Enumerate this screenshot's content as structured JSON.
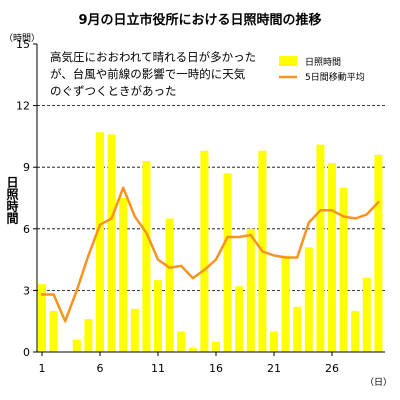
{
  "chart_data": {
    "type": "bar",
    "title": "9月の日立市役所における日照時間の推移",
    "ylabel": "日照時間",
    "y_unit": "（時間）",
    "x_unit": "（日）",
    "ylim": [
      0,
      15
    ],
    "yticks": [
      0,
      3,
      6,
      9,
      12,
      15
    ],
    "xlim": [
      1,
      30
    ],
    "xticks": [
      1,
      6,
      11,
      16,
      21,
      26
    ],
    "grid": true,
    "legend_position": "top-right",
    "annotation": [
      "高気圧におおわれて晴れる日が多かった",
      "が、台風や前線の影響で一時的に天気",
      "のぐずつくときがあった"
    ],
    "x": [
      1,
      2,
      3,
      4,
      5,
      6,
      7,
      8,
      9,
      10,
      11,
      12,
      13,
      14,
      15,
      16,
      17,
      18,
      19,
      20,
      21,
      22,
      23,
      24,
      25,
      26,
      27,
      28,
      29,
      30
    ],
    "series": [
      {
        "name": "日照時間",
        "type": "bar",
        "color": "#FFFF00",
        "values": [
          3.3,
          2.0,
          0.0,
          0.6,
          1.6,
          10.7,
          10.6,
          7.5,
          2.1,
          9.3,
          3.5,
          6.5,
          1.0,
          0.2,
          9.8,
          0.5,
          8.7,
          3.2,
          6.0,
          9.8,
          1.0,
          4.7,
          2.2,
          5.1,
          10.1,
          9.2,
          8.0,
          2.0,
          3.6,
          9.6
        ]
      },
      {
        "name": "5日間移動平均",
        "type": "line",
        "color": "#F7931E",
        "values": [
          2.8,
          2.8,
          1.5,
          3.0,
          4.7,
          6.2,
          6.5,
          8.0,
          6.6,
          5.8,
          4.5,
          4.1,
          4.2,
          3.6,
          4.0,
          4.5,
          5.6,
          5.6,
          5.7,
          4.9,
          4.7,
          4.6,
          4.6,
          6.3,
          6.9,
          6.9,
          6.6,
          6.5,
          6.7,
          7.3
        ]
      }
    ]
  }
}
